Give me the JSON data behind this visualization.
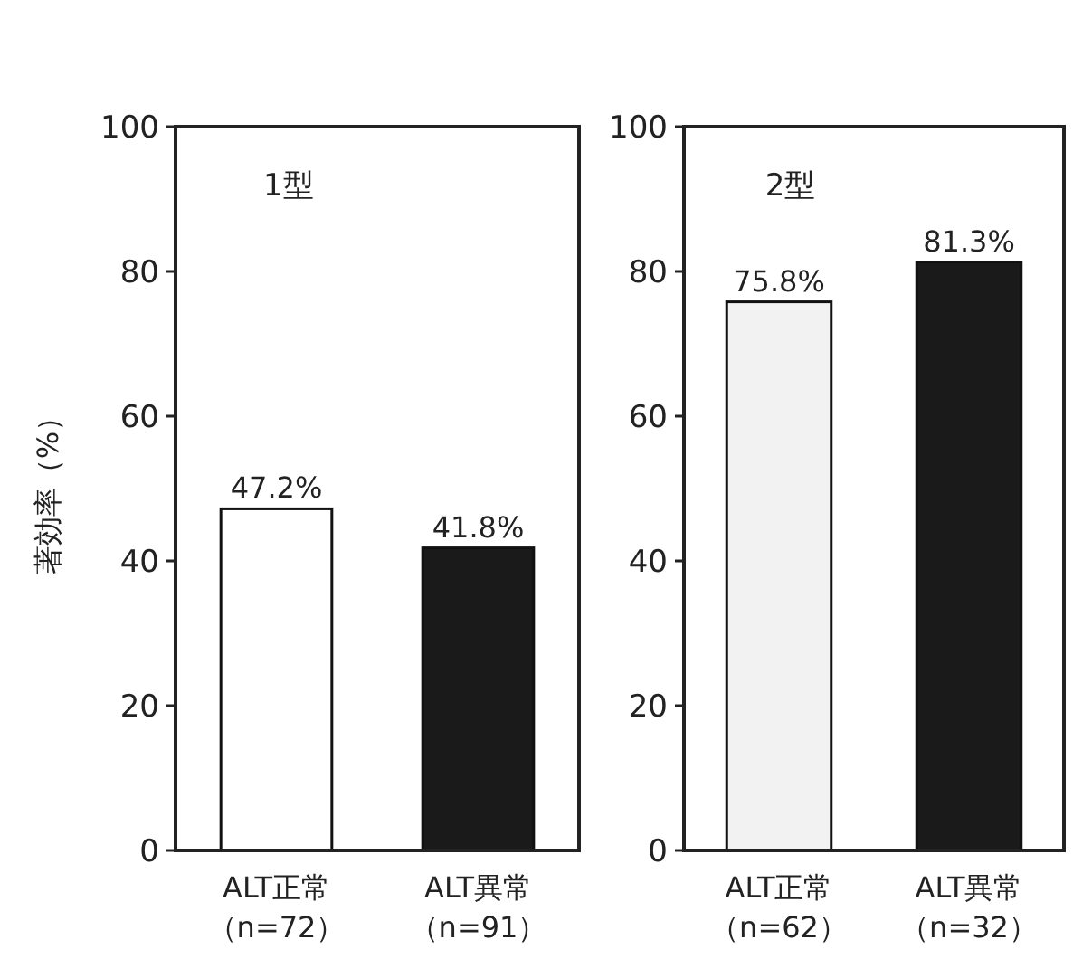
{
  "chart_data": [
    {
      "type": "bar",
      "title": "1型",
      "ylabel": "著効率（%）",
      "categories": [
        "ALT正常（n=72）",
        "ALT異常（n=91）"
      ],
      "values": [
        47.2,
        41.8
      ],
      "colors": [
        "#ffffff",
        "#1a1a1a"
      ],
      "value_labels": [
        "47.2%",
        "41.8%"
      ],
      "ylim": [
        0,
        100
      ],
      "yticks": [
        0,
        20,
        40,
        60,
        80,
        100
      ],
      "grid": false
    },
    {
      "type": "bar",
      "title": "2型",
      "categories": [
        "ALT正常（n=62）",
        "ALT異常（n=32）"
      ],
      "values": [
        75.8,
        81.3
      ],
      "colors": [
        "#f2f2f2",
        "#1a1a1a"
      ],
      "value_labels": [
        "75.8%",
        "81.3%"
      ],
      "ylim": [
        0,
        100
      ],
      "yticks": [
        0,
        20,
        40,
        60,
        80,
        100
      ],
      "grid": false
    }
  ]
}
